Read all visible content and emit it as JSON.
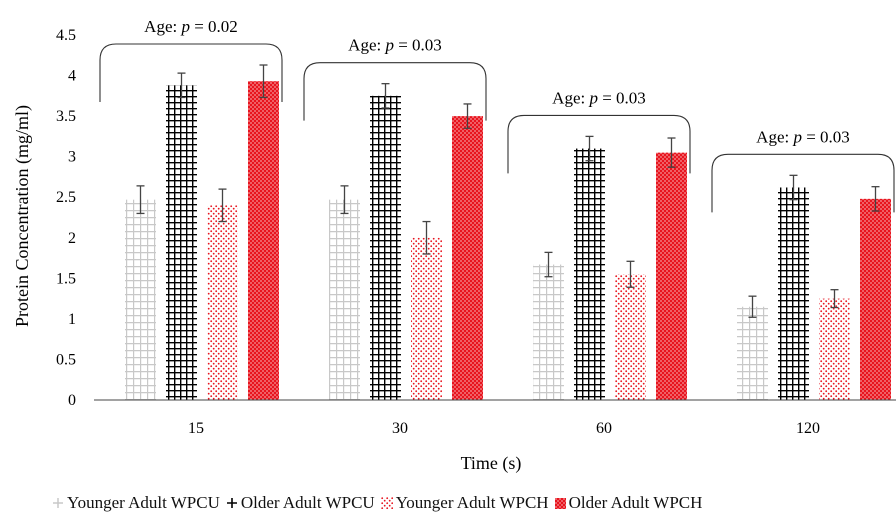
{
  "chart_data": {
    "type": "bar",
    "categories": [
      "15",
      "30",
      "60",
      "120"
    ],
    "xlabel": "Time (s)",
    "ylabel": "Protein Concentration (mg/ml)",
    "ylim": [
      0,
      4.5
    ],
    "yticks": [
      "0",
      "0.5",
      "1",
      "1.5",
      "2",
      "2.5",
      "3",
      "3.5",
      "4",
      "4.5"
    ],
    "grid": false,
    "legend_position": "bottom",
    "series": [
      {
        "name": "Younger Adult WPCU",
        "values": [
          2.47,
          2.47,
          1.67,
          1.15
        ],
        "errors": [
          0.17,
          0.17,
          0.15,
          0.13
        ],
        "color": "#c8c8c8",
        "pattern": "grid-light"
      },
      {
        "name": "Older Adult WPCU",
        "values": [
          3.88,
          3.75,
          3.1,
          2.62
        ],
        "errors": [
          0.15,
          0.15,
          0.15,
          0.15
        ],
        "color": "#000000",
        "pattern": "grid-dark"
      },
      {
        "name": "Younger Adult WPCH",
        "values": [
          2.4,
          2.0,
          1.55,
          1.25
        ],
        "errors": [
          0.2,
          0.2,
          0.16,
          0.11
        ],
        "color": "#e8141e",
        "pattern": "dots"
      },
      {
        "name": "Older Adult WPCH",
        "values": [
          3.93,
          3.5,
          3.05,
          2.48
        ],
        "errors": [
          0.2,
          0.15,
          0.18,
          0.15
        ],
        "color": "#e8141e",
        "pattern": "dense-dots"
      }
    ],
    "annotations": [
      {
        "category": "15",
        "text_prefix": "Age: ",
        "p_symbol": "p",
        "text_suffix": " = 0.02"
      },
      {
        "category": "30",
        "text_prefix": "Age: ",
        "p_symbol": "p",
        "text_suffix": " = 0.03"
      },
      {
        "category": "60",
        "text_prefix": "Age: ",
        "p_symbol": "p",
        "text_suffix": " = 0.03"
      },
      {
        "category": "120",
        "text_prefix": "Age: ",
        "p_symbol": "p",
        "text_suffix": " = 0.03"
      }
    ]
  }
}
